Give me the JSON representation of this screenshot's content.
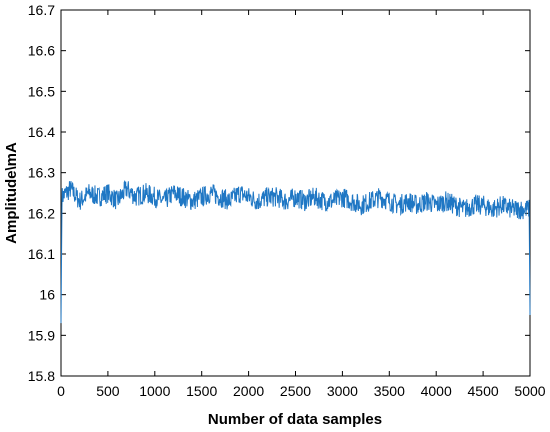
{
  "chart_data": {
    "type": "line",
    "title": "",
    "xlabel": "Number of data samples",
    "ylabel": "Amplitude\\mA",
    "xlim": [
      0,
      5000
    ],
    "ylim": [
      15.8,
      16.7
    ],
    "xticks": [
      0,
      500,
      1000,
      1500,
      2000,
      2500,
      3000,
      3500,
      4000,
      4500,
      5000
    ],
    "yticks": [
      15.8,
      15.9,
      16,
      16.1,
      16.2,
      16.3,
      16.4,
      16.5,
      16.6,
      16.7
    ],
    "ytick_labels": [
      "15.8",
      "15.9",
      "16",
      "16.1",
      "16.2",
      "16.3",
      "16.4",
      "16.5",
      "16.6",
      "16.7"
    ],
    "grid": false,
    "legend": "none",
    "line_color": "#1f77c4",
    "series": [
      {
        "x": [
          0,
          10,
          100,
          200,
          300,
          400,
          500,
          600,
          700,
          800,
          900,
          1000,
          1100,
          1200,
          1300,
          1400,
          1500,
          1600,
          1700,
          1800,
          1900,
          2000,
          2100,
          2200,
          2300,
          2400,
          2500,
          2600,
          2700,
          2800,
          2900,
          3000,
          3100,
          3200,
          3300,
          3400,
          3500,
          3600,
          3700,
          3800,
          3900,
          4000,
          4100,
          4200,
          4300,
          4400,
          4500,
          4600,
          4700,
          4800,
          4900,
          4990,
          5000
        ],
        "y": [
          15.93,
          16.24,
          16.26,
          16.23,
          16.25,
          16.24,
          16.25,
          16.23,
          16.26,
          16.24,
          16.25,
          16.24,
          16.23,
          16.25,
          16.24,
          16.23,
          16.24,
          16.25,
          16.24,
          16.23,
          16.25,
          16.24,
          16.23,
          16.24,
          16.24,
          16.23,
          16.24,
          16.23,
          16.24,
          16.23,
          16.23,
          16.24,
          16.23,
          16.22,
          16.23,
          16.24,
          16.23,
          16.22,
          16.23,
          16.22,
          16.23,
          16.22,
          16.23,
          16.22,
          16.21,
          16.22,
          16.22,
          16.21,
          16.22,
          16.21,
          16.21,
          16.21,
          15.95
        ]
      }
    ]
  }
}
